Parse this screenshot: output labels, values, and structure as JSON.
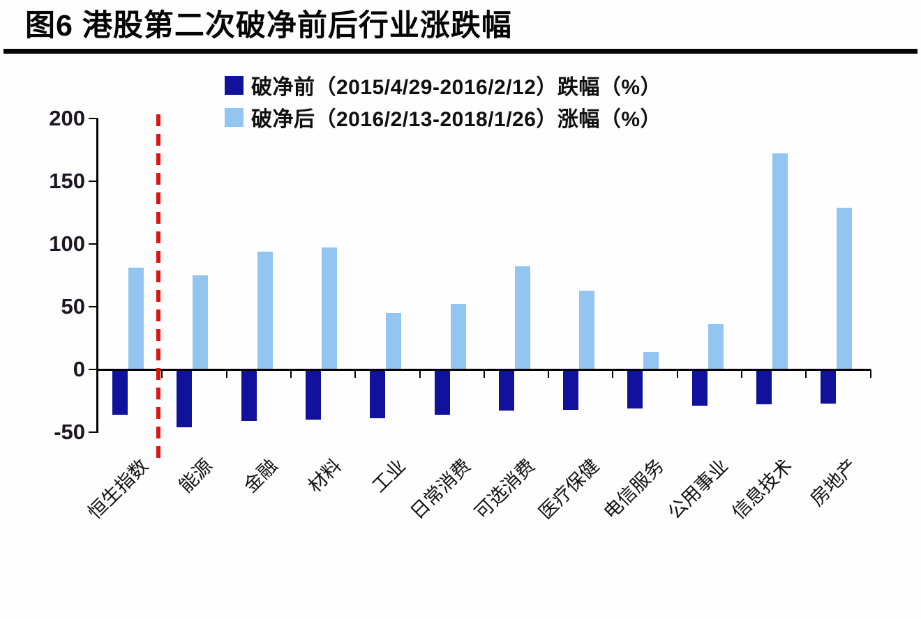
{
  "title": "图6  港股第二次破净前后行业涨跌幅",
  "chart_data": {
    "type": "bar",
    "title": "港股第二次破净前后行业涨跌幅",
    "categories": [
      "恒生指数",
      "能源",
      "金融",
      "材料",
      "工业",
      "日常消费",
      "可选消费",
      "医疗保健",
      "电信服务",
      "公用事业",
      "信息技术",
      "房地产"
    ],
    "series": [
      {
        "name": "破净前（2015/4/29-2016/2/12）跌幅（%）",
        "color": "#10129b",
        "values": [
          -36,
          -46,
          -41,
          -40,
          -39,
          -36,
          -33,
          -32,
          -31,
          -29,
          -28,
          -27
        ]
      },
      {
        "name": "破净后（2016/2/13-2018/1/26）涨幅（%）",
        "color": "#92c5f0",
        "values": [
          81,
          75,
          94,
          97,
          45,
          52,
          82,
          63,
          14,
          36,
          172,
          129
        ]
      }
    ],
    "xlabel": "",
    "ylabel": "",
    "ylim": [
      -50,
      200
    ],
    "yticks": [
      200,
      150,
      100,
      50,
      0,
      -50
    ],
    "grid": false,
    "legend_position": "top",
    "annotations": [
      {
        "type": "vertical-dashed-line",
        "color": "#dd1411",
        "between_categories": [
          "恒生指数",
          "能源"
        ]
      }
    ],
    "axis_color": "#000000"
  }
}
